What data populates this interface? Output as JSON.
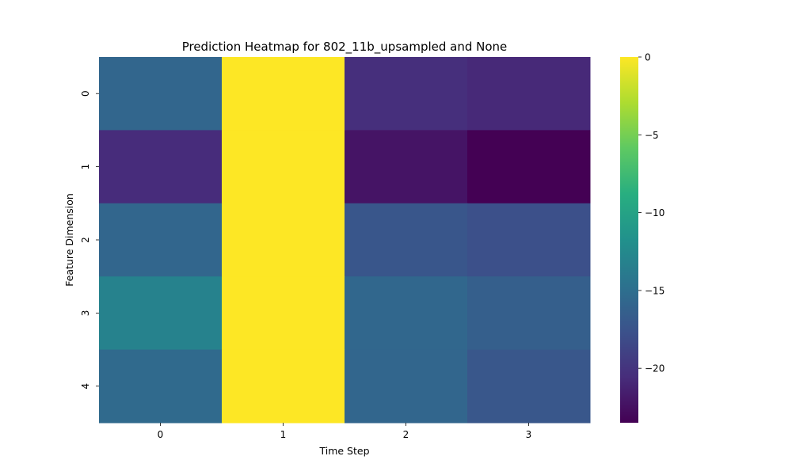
{
  "chart_data": {
    "type": "heatmap",
    "title": "Prediction Heatmap for 802_11b_upsampled and None",
    "xlabel": "Time Step",
    "ylabel": "Feature Dimension",
    "x_categories": [
      "0",
      "1",
      "2",
      "3"
    ],
    "y_categories": [
      "0",
      "1",
      "2",
      "3",
      "4"
    ],
    "values": [
      [
        -15.8,
        0.0,
        -20.4,
        -20.8
      ],
      [
        -20.6,
        0.0,
        -22.2,
        -23.5
      ],
      [
        -15.8,
        0.0,
        -17.3,
        -17.8
      ],
      [
        -13.2,
        0.0,
        -15.7,
        -16.4
      ],
      [
        -15.4,
        0.0,
        -15.8,
        -17.2
      ]
    ],
    "colormap": "viridis",
    "vmin": -23.5,
    "vmax": 0,
    "colorbar_ticks": [
      0,
      -5,
      -10,
      -15,
      -20
    ],
    "colorbar_tick_labels": [
      "0",
      "−5",
      "−10",
      "−15",
      "−20"
    ]
  }
}
